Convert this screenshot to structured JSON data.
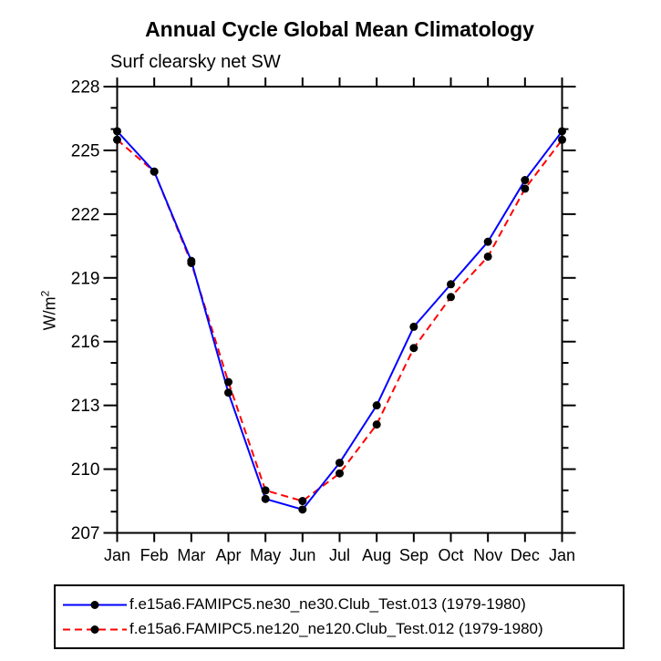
{
  "window": {
    "background": "#ffffff"
  },
  "chart_data": {
    "type": "line",
    "title": "Annual Cycle Global Mean Climatology",
    "subtitle": "Surf clearsky net SW",
    "ylabel": "W/m^2",
    "ylabel_base": "W/m",
    "ylabel_exponent": "2",
    "xlabel": "",
    "categories": [
      "Jan",
      "Feb",
      "Mar",
      "Apr",
      "May",
      "Jun",
      "Jul",
      "Aug",
      "Sep",
      "Oct",
      "Nov",
      "Dec",
      "Jan"
    ],
    "series": [
      {
        "name": "f.e15a6.FAMIPC5.ne30_ne30.Club_Test.013 (1979-1980)",
        "color": "#0000ff",
        "line_style": "solid",
        "marker": "filled-circle",
        "marker_color": "#000000",
        "values": [
          225.9,
          224.0,
          219.8,
          213.6,
          208.6,
          208.1,
          210.3,
          213.0,
          216.7,
          218.7,
          220.7,
          223.6,
          225.9
        ]
      },
      {
        "name": "f.e15a6.FAMIPC5.ne120_ne120.Club_Test.012 (1979-1980)",
        "color": "#ff0000",
        "line_style": "dashed",
        "marker": "filled-circle",
        "marker_color": "#000000",
        "values": [
          225.5,
          224.0,
          219.7,
          214.1,
          209.0,
          208.5,
          209.8,
          212.1,
          215.7,
          218.1,
          220.0,
          223.2,
          225.5
        ]
      }
    ],
    "ylim": [
      207,
      228
    ],
    "ytick_major_interval": 3,
    "ytick_minor_interval": 1,
    "ytick_labels": [
      "207",
      "210",
      "213",
      "216",
      "219",
      "222",
      "225",
      "228"
    ],
    "grid": false,
    "tick_direction": "out",
    "axis_color": "#000000",
    "legend_position": "bottom",
    "legend": {
      "entries": [
        {
          "label": "f.e15a6.FAMIPC5.ne30_ne30.Club_Test.013 (1979-1980)",
          "color": "#0000ff",
          "style": "solid",
          "marker": "filled-circle"
        },
        {
          "label": "f.e15a6.FAMIPC5.ne120_ne120.Club_Test.012 (1979-1980)",
          "color": "#ff0000",
          "style": "dashed",
          "marker": "filled-circle"
        }
      ]
    }
  }
}
